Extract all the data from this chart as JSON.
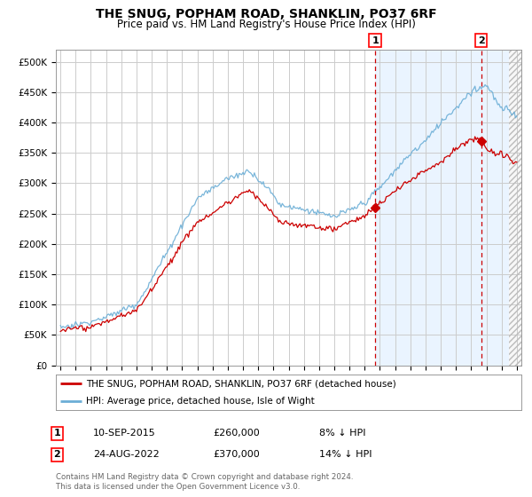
{
  "title": "THE SNUG, POPHAM ROAD, SHANKLIN, PO37 6RF",
  "subtitle": "Price paid vs. HM Land Registry's House Price Index (HPI)",
  "ylabel_ticks": [
    "£0",
    "£50K",
    "£100K",
    "£150K",
    "£200K",
    "£250K",
    "£300K",
    "£350K",
    "£400K",
    "£450K",
    "£500K"
  ],
  "ytick_values": [
    0,
    50000,
    100000,
    150000,
    200000,
    250000,
    300000,
    350000,
    400000,
    450000,
    500000
  ],
  "ylim": [
    0,
    520000
  ],
  "xlim_start": 1994.7,
  "xlim_end": 2025.3,
  "hpi_color": "#6baed6",
  "price_color": "#cc0000",
  "marker1_date": 2015.69,
  "marker1_price": 260000,
  "marker1_label": "10-SEP-2015",
  "marker1_pct": "8% ↓ HPI",
  "marker2_date": 2022.65,
  "marker2_price": 370000,
  "marker2_label": "24-AUG-2022",
  "marker2_pct": "14% ↓ HPI",
  "legend_line1": "THE SNUG, POPHAM ROAD, SHANKLIN, PO37 6RF (detached house)",
  "legend_line2": "HPI: Average price, detached house, Isle of Wight",
  "footnote": "Contains HM Land Registry data © Crown copyright and database right 2024.\nThis data is licensed under the Open Government Licence v3.0.",
  "bg_color": "#ffffff",
  "grid_color": "#cccccc",
  "shade_color": "#ddeeff",
  "hatch_color": "#dddddd",
  "shade_start": 2015.69,
  "hatch_start": 2024.5
}
